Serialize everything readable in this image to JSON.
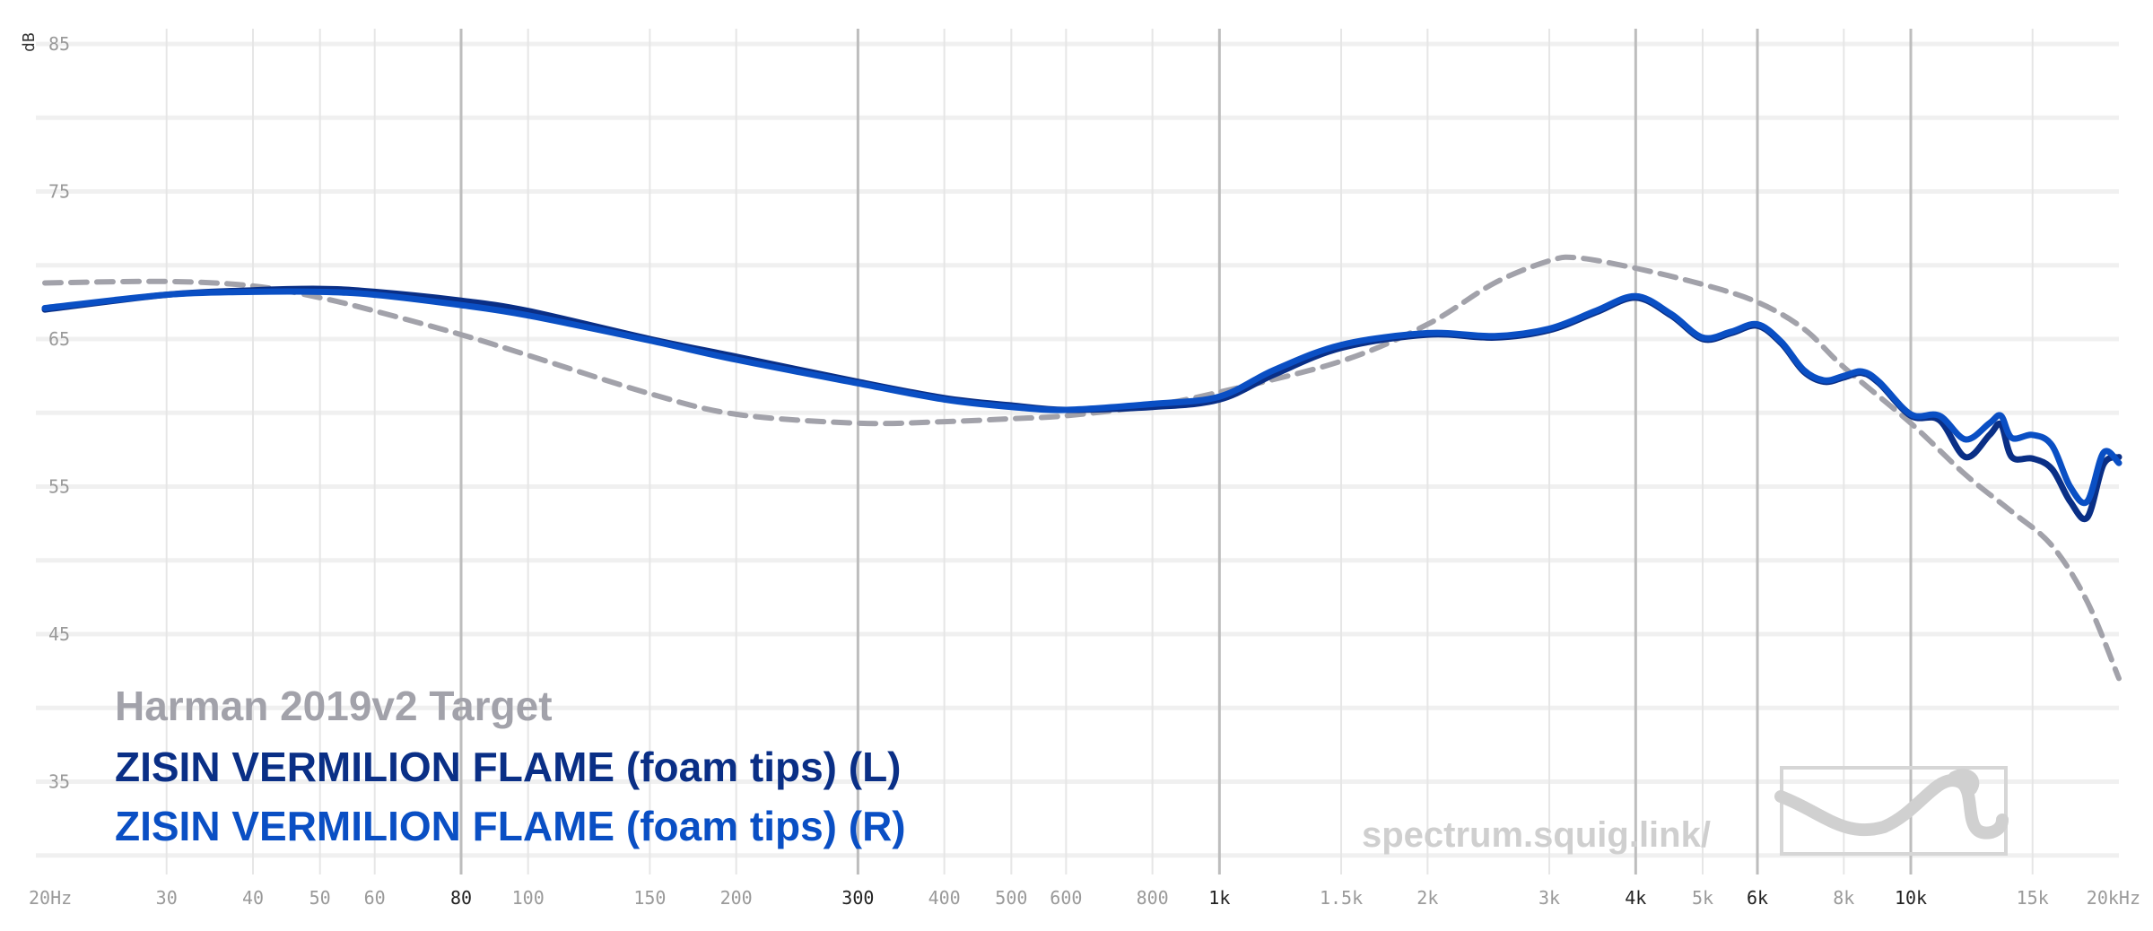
{
  "chart_data": {
    "type": "line",
    "title": "",
    "xlabel": "",
    "ylabel": "dB",
    "xscale": "log",
    "xlim": [
      20,
      20000
    ],
    "ylim": [
      30,
      85
    ],
    "y_ticks": [
      {
        "value": 35,
        "label": "35"
      },
      {
        "value": 45,
        "label": "45"
      },
      {
        "value": 55,
        "label": "55"
      },
      {
        "value": 65,
        "label": "65"
      },
      {
        "value": 75,
        "label": "75"
      },
      {
        "value": 85,
        "label": "85"
      }
    ],
    "x_ticks": [
      {
        "value": 20,
        "label": "20Hz",
        "major": false
      },
      {
        "value": 30,
        "label": "30",
        "major": false
      },
      {
        "value": 40,
        "label": "40",
        "major": false
      },
      {
        "value": 50,
        "label": "50",
        "major": false
      },
      {
        "value": 60,
        "label": "60",
        "major": false
      },
      {
        "value": 80,
        "label": "80",
        "major": true
      },
      {
        "value": 100,
        "label": "100",
        "major": false
      },
      {
        "value": 150,
        "label": "150",
        "major": false
      },
      {
        "value": 200,
        "label": "200",
        "major": false
      },
      {
        "value": 300,
        "label": "300",
        "major": true
      },
      {
        "value": 400,
        "label": "400",
        "major": false
      },
      {
        "value": 500,
        "label": "500",
        "major": false
      },
      {
        "value": 600,
        "label": "600",
        "major": false
      },
      {
        "value": 800,
        "label": "800",
        "major": false
      },
      {
        "value": 1000,
        "label": "1k",
        "major": true
      },
      {
        "value": 1500,
        "label": "1.5k",
        "major": false
      },
      {
        "value": 2000,
        "label": "2k",
        "major": false
      },
      {
        "value": 3000,
        "label": "3k",
        "major": false
      },
      {
        "value": 4000,
        "label": "4k",
        "major": true
      },
      {
        "value": 5000,
        "label": "5k",
        "major": false
      },
      {
        "value": 6000,
        "label": "6k",
        "major": true
      },
      {
        "value": 8000,
        "label": "8k",
        "major": false
      },
      {
        "value": 10000,
        "label": "10k",
        "major": true
      },
      {
        "value": 15000,
        "label": "15k",
        "major": false
      },
      {
        "value": 20000,
        "label": "20kHz",
        "major": false
      }
    ],
    "grid": true,
    "legend_position": "bottom-left",
    "series": [
      {
        "name": "Harman 2019v2 Target",
        "color": "#a2a2aa",
        "dashed": true,
        "points": [
          [
            20,
            68.8
          ],
          [
            30,
            68.9
          ],
          [
            40,
            68.6
          ],
          [
            50,
            67.8
          ],
          [
            60,
            66.9
          ],
          [
            80,
            65.3
          ],
          [
            100,
            63.9
          ],
          [
            150,
            61.3
          ],
          [
            200,
            59.9
          ],
          [
            300,
            59.3
          ],
          [
            400,
            59.4
          ],
          [
            500,
            59.6
          ],
          [
            600,
            59.8
          ],
          [
            800,
            60.5
          ],
          [
            1000,
            61.4
          ],
          [
            1500,
            63.5
          ],
          [
            2000,
            66.0
          ],
          [
            2500,
            68.8
          ],
          [
            3000,
            70.3
          ],
          [
            3300,
            70.5
          ],
          [
            4000,
            69.8
          ],
          [
            5000,
            68.7
          ],
          [
            6000,
            67.5
          ],
          [
            7000,
            65.7
          ],
          [
            8000,
            63.1
          ],
          [
            10000,
            59.3
          ],
          [
            12000,
            55.8
          ],
          [
            14000,
            53.3
          ],
          [
            16000,
            51.0
          ],
          [
            18000,
            47.2
          ],
          [
            20000,
            42.0
          ]
        ]
      },
      {
        "name": "ZISIN VERMILION FLAME (foam tips) (L)",
        "color": "#0a2f86",
        "dashed": false,
        "points": [
          [
            20,
            67.0
          ],
          [
            30,
            68.0
          ],
          [
            40,
            68.3
          ],
          [
            50,
            68.4
          ],
          [
            60,
            68.2
          ],
          [
            80,
            67.6
          ],
          [
            100,
            66.9
          ],
          [
            150,
            65.0
          ],
          [
            200,
            63.8
          ],
          [
            300,
            62.1
          ],
          [
            400,
            61.0
          ],
          [
            500,
            60.5
          ],
          [
            600,
            60.2
          ],
          [
            800,
            60.4
          ],
          [
            1000,
            60.9
          ],
          [
            1200,
            62.6
          ],
          [
            1500,
            64.4
          ],
          [
            2000,
            65.3
          ],
          [
            2500,
            65.1
          ],
          [
            3000,
            65.6
          ],
          [
            3500,
            66.8
          ],
          [
            4000,
            67.8
          ],
          [
            4500,
            66.6
          ],
          [
            5000,
            65.0
          ],
          [
            5500,
            65.4
          ],
          [
            6000,
            65.9
          ],
          [
            6500,
            64.7
          ],
          [
            7000,
            62.8
          ],
          [
            7500,
            62.1
          ],
          [
            8000,
            62.4
          ],
          [
            8500,
            62.7
          ],
          [
            9000,
            62.0
          ],
          [
            10000,
            59.8
          ],
          [
            11000,
            59.5
          ],
          [
            12000,
            57.0
          ],
          [
            13000,
            58.5
          ],
          [
            13500,
            59.2
          ],
          [
            14000,
            57.0
          ],
          [
            15000,
            56.9
          ],
          [
            16000,
            56.2
          ],
          [
            17000,
            54.0
          ],
          [
            18000,
            52.9
          ],
          [
            19000,
            56.5
          ],
          [
            20000,
            57.0
          ]
        ]
      },
      {
        "name": "ZISIN VERMILION FLAME (foam tips) (R)",
        "color": "#0a4fc4",
        "dashed": false,
        "points": [
          [
            20,
            67.1
          ],
          [
            30,
            68.0
          ],
          [
            40,
            68.2
          ],
          [
            50,
            68.2
          ],
          [
            60,
            68.0
          ],
          [
            80,
            67.3
          ],
          [
            100,
            66.6
          ],
          [
            150,
            64.9
          ],
          [
            200,
            63.6
          ],
          [
            300,
            62.0
          ],
          [
            400,
            60.9
          ],
          [
            500,
            60.4
          ],
          [
            600,
            60.2
          ],
          [
            800,
            60.6
          ],
          [
            1000,
            61.1
          ],
          [
            1200,
            62.9
          ],
          [
            1500,
            64.6
          ],
          [
            2000,
            65.4
          ],
          [
            2500,
            65.2
          ],
          [
            3000,
            65.7
          ],
          [
            3500,
            66.9
          ],
          [
            4000,
            67.9
          ],
          [
            4500,
            66.7
          ],
          [
            5000,
            65.1
          ],
          [
            5500,
            65.5
          ],
          [
            6000,
            66.0
          ],
          [
            6500,
            64.8
          ],
          [
            7000,
            62.9
          ],
          [
            7500,
            62.2
          ],
          [
            8000,
            62.5
          ],
          [
            8500,
            62.8
          ],
          [
            9000,
            62.1
          ],
          [
            10000,
            59.9
          ],
          [
            11000,
            59.8
          ],
          [
            12000,
            58.2
          ],
          [
            13000,
            59.3
          ],
          [
            13500,
            59.8
          ],
          [
            14000,
            58.3
          ],
          [
            15000,
            58.5
          ],
          [
            16000,
            57.8
          ],
          [
            17000,
            55.0
          ],
          [
            18000,
            54.0
          ],
          [
            19000,
            57.3
          ],
          [
            20000,
            56.6
          ]
        ]
      }
    ]
  },
  "watermark": {
    "text": "spectrum.squig.link/",
    "logo": "squig-wave-logo"
  }
}
